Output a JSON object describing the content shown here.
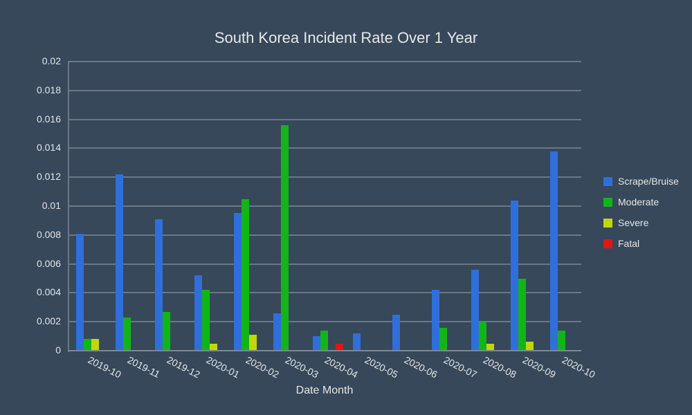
{
  "chart_data": {
    "type": "bar",
    "title": "South Korea Incident Rate Over 1 Year",
    "xlabel": "Date Month",
    "ylabel": "",
    "ylim": [
      0,
      0.02
    ],
    "yticks": [
      "0",
      "0.002",
      "0.004",
      "0.006",
      "0.008",
      "0.01",
      "0.012",
      "0.014",
      "0.016",
      "0.018",
      "0.02"
    ],
    "grid": true,
    "legend_position": "right",
    "categories": [
      "2019-10",
      "2019-11",
      "2019-12",
      "2020-01",
      "2020-02",
      "2020-03",
      "2020-04",
      "2020-05",
      "2020-06",
      "2020-07",
      "2020-08",
      "2020-09",
      "2020-10"
    ],
    "series": [
      {
        "name": "Scrape/Bruise",
        "color": "#2f6fdb",
        "values": [
          0.0081,
          0.0122,
          0.0091,
          0.0052,
          0.0095,
          0.0026,
          0.001,
          0.0012,
          0.0025,
          0.0042,
          0.0056,
          0.0104,
          0.0138
        ]
      },
      {
        "name": "Moderate",
        "color": "#12b518",
        "values": [
          0.0008,
          0.0023,
          0.0027,
          0.0042,
          0.0105,
          0.0156,
          0.0014,
          0,
          0,
          0.0016,
          0.002,
          0.005,
          0.0014
        ]
      },
      {
        "name": "Severe",
        "color": "#c0d80a",
        "values": [
          0.0008,
          0,
          0,
          0.0005,
          0.0011,
          0,
          0,
          0,
          0,
          0,
          0.0005,
          0.0006,
          0
        ]
      },
      {
        "name": "Fatal",
        "color": "#e01616",
        "values": [
          0,
          0,
          0,
          0,
          0,
          0,
          0.0005,
          0,
          0,
          0,
          0,
          0,
          0
        ]
      }
    ]
  }
}
